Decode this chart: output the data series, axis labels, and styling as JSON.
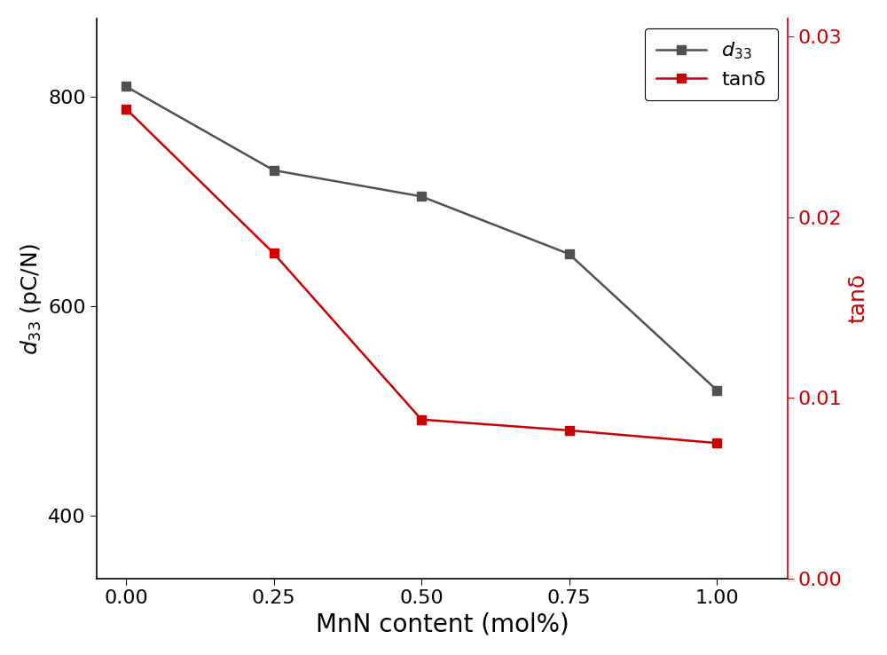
{
  "x": [
    0.0,
    0.25,
    0.5,
    0.75,
    1.0
  ],
  "d33": [
    810,
    730,
    705,
    650,
    520
  ],
  "tand": [
    0.026,
    0.018,
    0.0088,
    0.0082,
    0.0075
  ],
  "xlabel": "MnN content (mol%)",
  "ylabel_left": "$d_{33}$ (pC/N)",
  "ylabel_right": "tanδ",
  "xlim": [
    -0.05,
    1.12
  ],
  "ylim_left": [
    340,
    875
  ],
  "ylim_right": [
    0.0,
    0.031
  ],
  "yticks_left": [
    400,
    600,
    800
  ],
  "yticks_right": [
    0.0,
    0.01,
    0.02,
    0.03
  ],
  "xticks": [
    0.0,
    0.25,
    0.5,
    0.75,
    1.0
  ],
  "xtick_labels": [
    "0.00",
    "0.25",
    "0.50",
    "0.75",
    "1.00"
  ],
  "color_d33": "#505050",
  "color_tand": "#cc0000",
  "legend_d33": "$d_{33}$",
  "legend_tand": "tanδ",
  "marker": "s",
  "linewidth": 1.8,
  "markersize": 7,
  "xlabel_fontsize": 20,
  "ylabel_fontsize": 18,
  "tick_fontsize": 16,
  "legend_fontsize": 16,
  "bg_color": "#ffffff"
}
